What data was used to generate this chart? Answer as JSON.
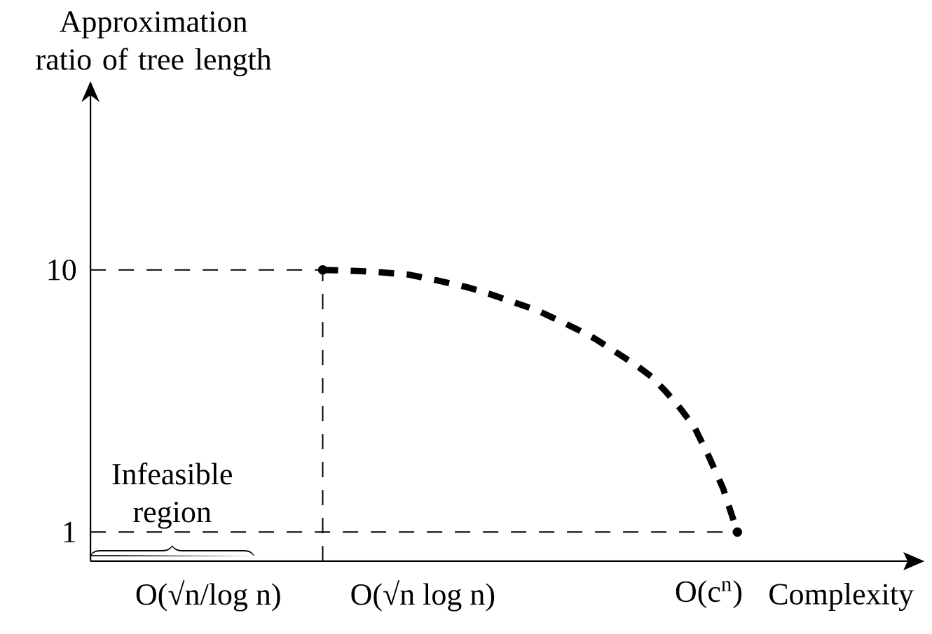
{
  "chart_data": {
    "type": "line",
    "xlabel": "Complexity",
    "ylabel": "Approximation ratio of tree length",
    "categories": [
      null,
      null,
      null,
      null,
      null,
      null,
      null,
      null,
      "O(√n/log n)",
      null,
      null,
      null,
      null,
      null,
      null,
      null,
      null,
      null,
      null,
      null,
      null,
      null,
      null,
      "O(√n log n)",
      null,
      null,
      null,
      null,
      null,
      null,
      null,
      null,
      null,
      null,
      null,
      null,
      null,
      null,
      null,
      null,
      null,
      null,
      null,
      "O(c$^{n}$)",
      null,
      null
    ],
    "ylim": [
      0,
      16
    ],
    "yticks": [
      1,
      10
    ],
    "grid": false,
    "legend": false,
    "series": [
      {
        "color": "#000000",
        "line_style": "dashed",
        "marker": "none",
        "values": [
          null,
          null,
          null,
          null,
          null,
          null,
          null,
          null,
          null,
          null,
          null,
          null,
          null,
          null,
          null,
          null,
          10.0,
          9.99,
          9.97,
          9.95,
          9.92,
          9.88,
          9.84,
          9.74,
          9.64,
          9.53,
          9.42,
          9.28,
          9.12,
          8.95,
          8.78,
          8.61,
          8.38,
          8.15,
          7.91,
          7.65,
          7.34,
          7.02,
          6.7,
          6.33,
          5.82,
          5.25,
          4.6,
          3.6,
          2.5,
          1.0
        ]
      },
      {
        "type": "scatter",
        "color": "#000000",
        "marker": "circle",
        "values": [
          null,
          null,
          null,
          null,
          null,
          null,
          null,
          null,
          null,
          null,
          null,
          null,
          null,
          null,
          null,
          null,
          10,
          null,
          null,
          null,
          null,
          null,
          null,
          null,
          null,
          null,
          null,
          null,
          null,
          null,
          null,
          null,
          null,
          null,
          null,
          null,
          null,
          null,
          null,
          null,
          null,
          null,
          null,
          null,
          null,
          1
        ]
      }
    ],
    "ref_lines": [
      {
        "axis": "y",
        "value": 10,
        "line_style": "dashed",
        "color": "#000000"
      },
      {
        "axis": "y",
        "value": 1,
        "line_style": "dashed",
        "color": "#000000"
      }
    ],
    "annotations": [
      "Infeasible region"
    ]
  }
}
